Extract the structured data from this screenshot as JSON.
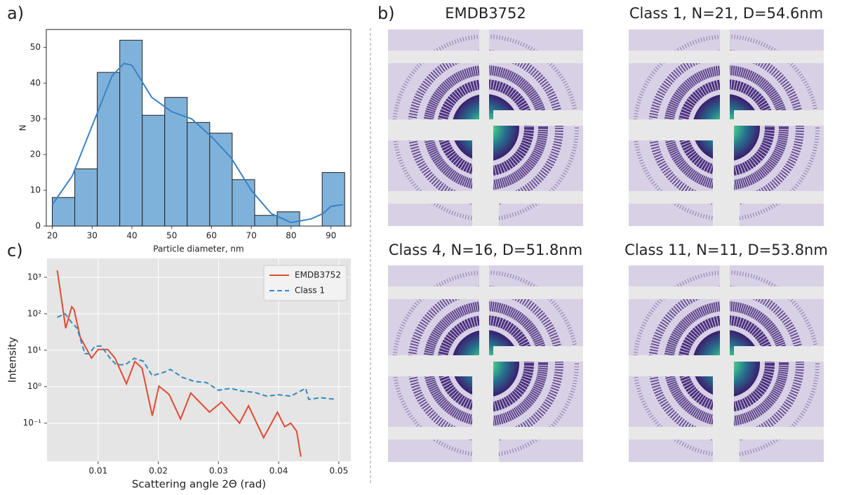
{
  "chart_data": [
    {
      "type": "histogram",
      "panel_label": "a)",
      "x_label": "Particle diameter, nm",
      "y_label": "N",
      "bins": [
        20,
        25.65,
        31.3,
        36.95,
        42.6,
        48.25,
        53.9,
        59.55,
        65.2,
        70.85,
        76.5,
        82.15,
        87.8,
        93.45
      ],
      "values": [
        8,
        16,
        43,
        52,
        31,
        36,
        29,
        26,
        13,
        3,
        4,
        0,
        15
      ],
      "color": "#7fb2da",
      "density_curve": {
        "x": [
          20,
          25,
          30,
          35,
          38,
          40,
          45,
          50,
          55,
          60,
          65,
          70,
          75,
          80,
          85,
          88,
          90,
          93
        ],
        "values": [
          6,
          14,
          28,
          42,
          45.5,
          45,
          36,
          32,
          30,
          25,
          19,
          10,
          3.5,
          1,
          2,
          3.5,
          5.5,
          6
        ],
        "color": "#3b82c4"
      },
      "xlim": [
        18.5,
        95
      ],
      "ylim": [
        0,
        55
      ],
      "xticks": [
        20,
        30,
        40,
        50,
        60,
        70,
        80,
        90
      ],
      "yticks": [
        0,
        10,
        20,
        30,
        40,
        50
      ],
      "grid": false
    },
    {
      "type": "line",
      "panel_label": "c)",
      "x_label": "Scattering angle 2Θ (rad)",
      "y_label": "Intensity",
      "yscale": "log",
      "series": [
        {
          "name": "EMDB3752",
          "color": "#e24a33",
          "dash": "solid",
          "x": [
            0.0032,
            0.0038,
            0.0046,
            0.0056,
            0.006,
            0.007,
            0.0089,
            0.01,
            0.0116,
            0.0128,
            0.0147,
            0.0161,
            0.0173,
            0.019,
            0.0201,
            0.0218,
            0.0237,
            0.0254,
            0.0285,
            0.0305,
            0.0335,
            0.035,
            0.0375,
            0.0398,
            0.041,
            0.042,
            0.043,
            0.0437
          ],
          "values": [
            1550,
            330,
            40,
            155,
            130,
            23,
            6.1,
            10.5,
            10.5,
            6.1,
            1.2,
            4.9,
            3.2,
            0.16,
            1.04,
            0.61,
            0.13,
            0.67,
            0.2,
            0.38,
            0.1,
            0.3,
            0.04,
            0.2,
            0.08,
            0.1,
            0.06,
            0.012
          ]
        },
        {
          "name": "Class 1",
          "color": "#348abd",
          "dash": "dashed",
          "x": [
            0.0032,
            0.0045,
            0.0055,
            0.0065,
            0.0078,
            0.0085,
            0.0095,
            0.0105,
            0.012,
            0.013,
            0.0145,
            0.016,
            0.0175,
            0.019,
            0.021,
            0.022,
            0.024,
            0.026,
            0.028,
            0.03,
            0.032,
            0.034,
            0.036,
            0.038,
            0.04,
            0.042,
            0.0445,
            0.045,
            0.047,
            0.0495
          ],
          "values": [
            80,
            100,
            60,
            40,
            8,
            8,
            13,
            13,
            6,
            4,
            4,
            6,
            5,
            2,
            2.5,
            3,
            1.8,
            1.4,
            1.3,
            0.8,
            0.9,
            0.75,
            0.7,
            0.55,
            0.6,
            0.55,
            0.9,
            0.45,
            0.5,
            0.45
          ]
        }
      ],
      "xlim": [
        0.0015,
        0.052
      ],
      "ylim": [
        0.009,
        3300
      ],
      "xticks": [
        0.01,
        0.02,
        0.03,
        0.04,
        0.05
      ],
      "yticks": [
        {
          "value": 0.1,
          "label": "10⁻¹"
        },
        {
          "value": 1,
          "label": "10⁰"
        },
        {
          "value": 10,
          "label": "10¹"
        },
        {
          "value": 100,
          "label": "10²"
        },
        {
          "value": 1000,
          "label": "10³"
        }
      ],
      "grid": true,
      "legend": "upper right"
    }
  ],
  "images": {
    "panel_label": "b)",
    "items": [
      {
        "title": "EMDB3752"
      },
      {
        "title": "Class 1, N=21, D=54.6nm"
      },
      {
        "title": "Class 4, N=16, D=51.8nm"
      },
      {
        "title": "Class 11, N=11, D=53.8nm"
      }
    ]
  }
}
